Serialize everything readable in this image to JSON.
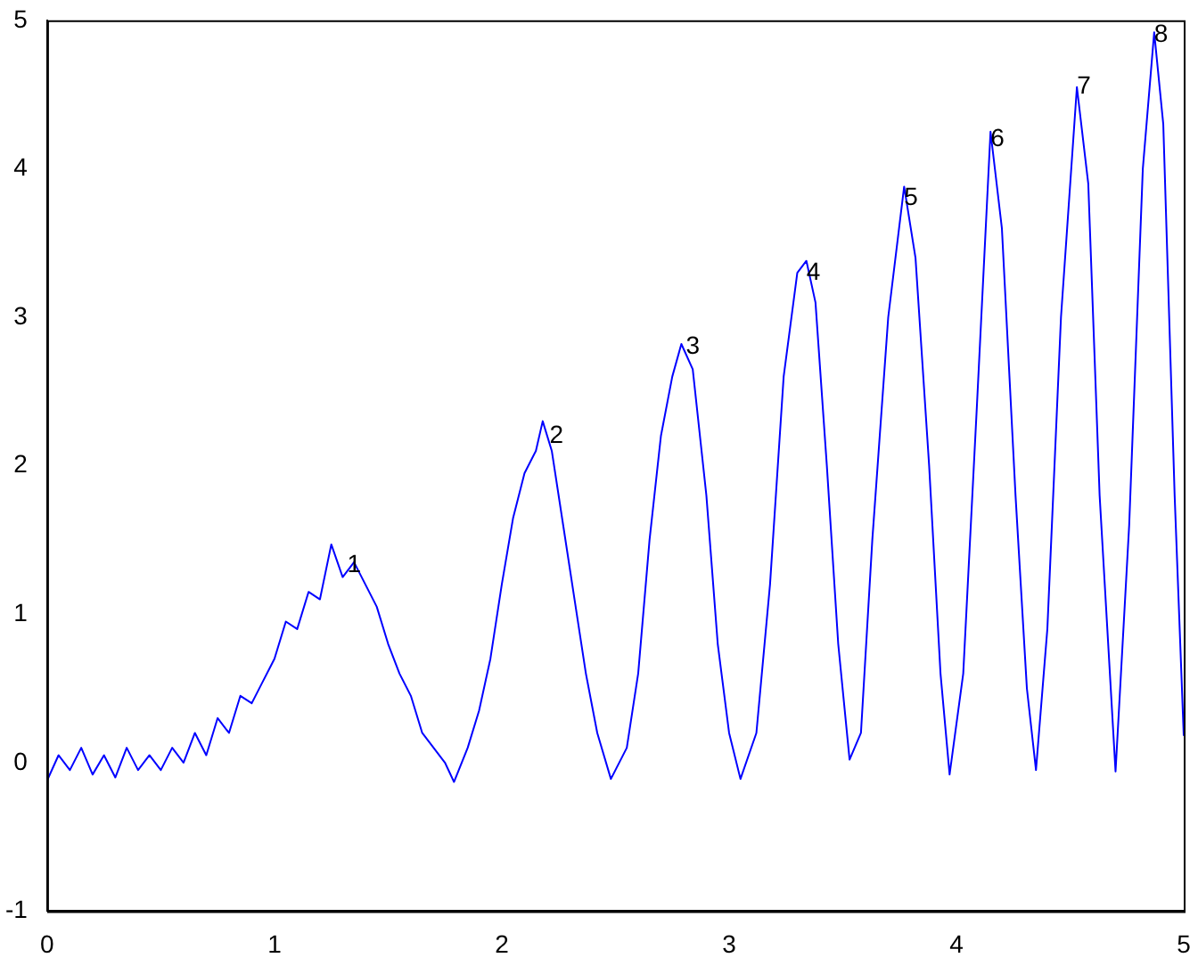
{
  "chart_data": {
    "type": "line",
    "x": [
      0,
      0.05,
      0.1,
      0.15,
      0.2,
      0.25,
      0.3,
      0.35,
      0.4,
      0.45,
      0.5,
      0.55,
      0.6,
      0.65,
      0.7,
      0.75,
      0.8,
      0.85,
      0.9,
      0.95,
      1.0,
      1.05,
      1.1,
      1.15,
      1.2,
      1.25,
      1.3,
      1.35,
      1.4,
      1.45,
      1.5,
      1.55,
      1.6,
      1.65,
      1.7,
      1.75,
      1.79,
      1.85,
      1.9,
      1.95,
      2.0,
      2.05,
      2.1,
      2.15,
      2.18,
      2.22,
      2.27,
      2.32,
      2.37,
      2.42,
      2.48,
      2.55,
      2.6,
      2.65,
      2.7,
      2.75,
      2.79,
      2.84,
      2.9,
      2.95,
      3.0,
      3.05,
      3.12,
      3.18,
      3.24,
      3.3,
      3.34,
      3.38,
      3.43,
      3.48,
      3.53,
      3.58,
      3.63,
      3.7,
      3.77,
      3.82,
      3.88,
      3.93,
      3.97,
      4.03,
      4.09,
      4.15,
      4.2,
      4.26,
      4.31,
      4.35,
      4.4,
      4.46,
      4.53,
      4.58,
      4.63,
      4.7,
      4.76,
      4.82,
      4.87,
      4.91,
      4.96,
      5.0
    ],
    "series": [
      {
        "color": "#0000ff",
        "values": [
          -0.12,
          0.05,
          -0.05,
          0.1,
          -0.08,
          0.05,
          -0.1,
          0.1,
          -0.05,
          0.05,
          -0.05,
          0.1,
          0.0,
          0.2,
          0.05,
          0.3,
          0.2,
          0.45,
          0.4,
          0.55,
          0.7,
          0.95,
          0.9,
          1.15,
          1.1,
          1.47,
          1.25,
          1.35,
          1.2,
          1.05,
          0.8,
          0.6,
          0.45,
          0.2,
          0.1,
          0.0,
          -0.13,
          0.1,
          0.35,
          0.7,
          1.2,
          1.65,
          1.95,
          2.1,
          2.3,
          2.1,
          1.6,
          1.1,
          0.6,
          0.2,
          -0.11,
          0.1,
          0.6,
          1.5,
          2.2,
          2.6,
          2.82,
          2.65,
          1.8,
          0.8,
          0.2,
          -0.11,
          0.2,
          1.2,
          2.6,
          3.3,
          3.38,
          3.1,
          2.0,
          0.8,
          0.02,
          0.2,
          1.5,
          3.0,
          3.88,
          3.4,
          2.0,
          0.6,
          -0.08,
          0.6,
          2.4,
          4.25,
          3.6,
          1.8,
          0.5,
          -0.05,
          0.9,
          3.0,
          4.55,
          3.9,
          1.8,
          -0.06,
          1.6,
          4.0,
          4.92,
          4.3,
          1.8,
          0.18
        ]
      }
    ],
    "xlim": [
      0,
      5
    ],
    "ylim": [
      -1,
      5
    ],
    "xticks": [
      0,
      1,
      2,
      3,
      4,
      5
    ],
    "yticks": [
      -1,
      0,
      1,
      2,
      3,
      4,
      5
    ],
    "grid": false,
    "legend": false,
    "marker": "none",
    "line_style": "solid",
    "annotations": [
      {
        "text": "1",
        "x": 1.32,
        "y": 1.33
      },
      {
        "text": "2",
        "x": 2.21,
        "y": 2.2
      },
      {
        "text": "3",
        "x": 2.81,
        "y": 2.8
      },
      {
        "text": "4",
        "x": 3.34,
        "y": 3.3
      },
      {
        "text": "5",
        "x": 3.77,
        "y": 3.8
      },
      {
        "text": "6",
        "x": 4.15,
        "y": 4.2
      },
      {
        "text": "7",
        "x": 4.53,
        "y": 4.55
      },
      {
        "text": "8",
        "x": 4.87,
        "y": 4.9
      }
    ]
  }
}
